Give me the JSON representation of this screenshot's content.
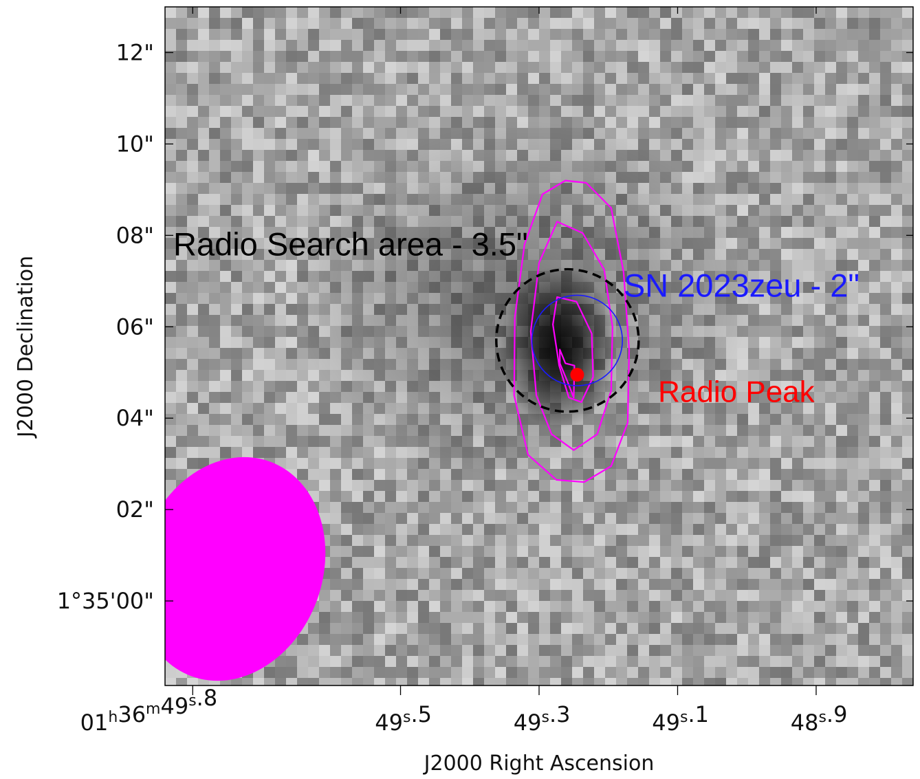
{
  "chart_data": {
    "type": "heatmap",
    "title": "",
    "xlabel": "J2000 Right Ascension",
    "ylabel": "J2000 Declination",
    "x_axis": {
      "unit": "seconds of RA (01h36m + value)",
      "range": [
        49.84,
        48.76
      ],
      "reversed": true,
      "tick_values": [
        49.8,
        49.5,
        49.3,
        49.1,
        48.9
      ],
      "tick_labels": [
        {
          "prefix": "01",
          "h": "h",
          "mid": "36",
          "m": "m",
          "sec": "49",
          "s": "s",
          "frac": ".8"
        },
        {
          "prefix": "",
          "h": "",
          "mid": "",
          "m": "",
          "sec": "49",
          "s": "s",
          "frac": ".5"
        },
        {
          "prefix": "",
          "h": "",
          "mid": "",
          "m": "",
          "sec": "49",
          "s": "s",
          "frac": ".3"
        },
        {
          "prefix": "",
          "h": "",
          "mid": "",
          "m": "",
          "sec": "49",
          "s": "s",
          "frac": ".1"
        },
        {
          "prefix": "",
          "h": "",
          "mid": "",
          "m": "",
          "sec": "48",
          "s": "s",
          "frac": ".9"
        }
      ]
    },
    "y_axis": {
      "unit": "arcseconds above +1°35'00\"",
      "range": [
        -1.85,
        13.0
      ],
      "tick_values": [
        12,
        10,
        8,
        6,
        4,
        2,
        0
      ],
      "tick_labels": [
        "12\"",
        "10\"",
        "08\"",
        "06\"",
        "04\"",
        "02\"",
        "1°35'00\""
      ]
    },
    "source": {
      "ra_s": 49.264,
      "dec_as": 5.7
    },
    "circles": [
      {
        "name": "Radio Search area - 3.5\"",
        "ra_s": 49.259,
        "dec_as": 5.7,
        "radius_as": 1.75,
        "color": "#000000",
        "dashed": true
      },
      {
        "name": "SN 2023zeu - 2\"",
        "ra_s": 49.245,
        "dec_as": 5.7,
        "radius_as": 1.0,
        "color": "#1a1aff",
        "dashed": false
      }
    ],
    "radio_peak": {
      "name": "Radio Peak",
      "ra_s": 49.245,
      "dec_as": 4.95,
      "color": "#ff0000"
    },
    "contours": {
      "color": "#ff00ff",
      "levels": [
        [
          [
            49.262,
            9.2
          ],
          [
            49.232,
            9.15
          ],
          [
            49.196,
            8.6
          ],
          [
            49.178,
            7.2
          ],
          [
            49.17,
            5.5
          ],
          [
            49.172,
            3.9
          ],
          [
            49.196,
            2.95
          ],
          [
            49.235,
            2.6
          ],
          [
            49.275,
            2.65
          ],
          [
            49.316,
            3.2
          ],
          [
            49.336,
            4.5
          ],
          [
            49.335,
            6.2
          ],
          [
            49.321,
            7.8
          ],
          [
            49.295,
            8.9
          ]
        ],
        [
          [
            49.274,
            8.3
          ],
          [
            49.237,
            8.05
          ],
          [
            49.206,
            7.25
          ],
          [
            49.194,
            6.0
          ],
          [
            49.196,
            4.6
          ],
          [
            49.216,
            3.65
          ],
          [
            49.25,
            3.3
          ],
          [
            49.282,
            3.65
          ],
          [
            49.304,
            4.5
          ],
          [
            49.312,
            5.9
          ],
          [
            49.3,
            7.4
          ]
        ],
        [
          [
            49.274,
            6.65
          ],
          [
            49.246,
            6.55
          ],
          [
            49.224,
            5.85
          ],
          [
            49.222,
            4.9
          ],
          [
            49.239,
            4.35
          ],
          [
            49.257,
            4.45
          ],
          [
            49.271,
            5.15
          ],
          [
            49.28,
            6.05
          ]
        ],
        [
          [
            49.262,
            5.2
          ],
          [
            49.249,
            5.15
          ],
          [
            49.25,
            4.45
          ],
          [
            49.259,
            4.8
          ],
          [
            49.27,
            5.2
          ],
          [
            49.27,
            5.5
          ]
        ]
      ]
    },
    "beam": {
      "ra_s": 49.745,
      "dec_as": 0.7,
      "major_as": 5.0,
      "minor_as": 4.05,
      "pa_deg": 20,
      "color": "#ff00ff"
    },
    "annotations": [
      {
        "key": "search",
        "text": "Radio Search area - 3.5\"",
        "color": "#000000",
        "ra_s": 49.84,
        "dec_as": 7.8
      },
      {
        "key": "sn",
        "text": "SN 2023zeu - 2\"",
        "color": "#1a1aff",
        "ra_s": 49.19,
        "dec_as": 6.9
      },
      {
        "key": "peak",
        "text": "Radio Peak",
        "color": "#ff0000",
        "ra_s": 49.14,
        "dec_as": 4.6
      }
    ],
    "colormap": "grayscale",
    "grid": false
  }
}
